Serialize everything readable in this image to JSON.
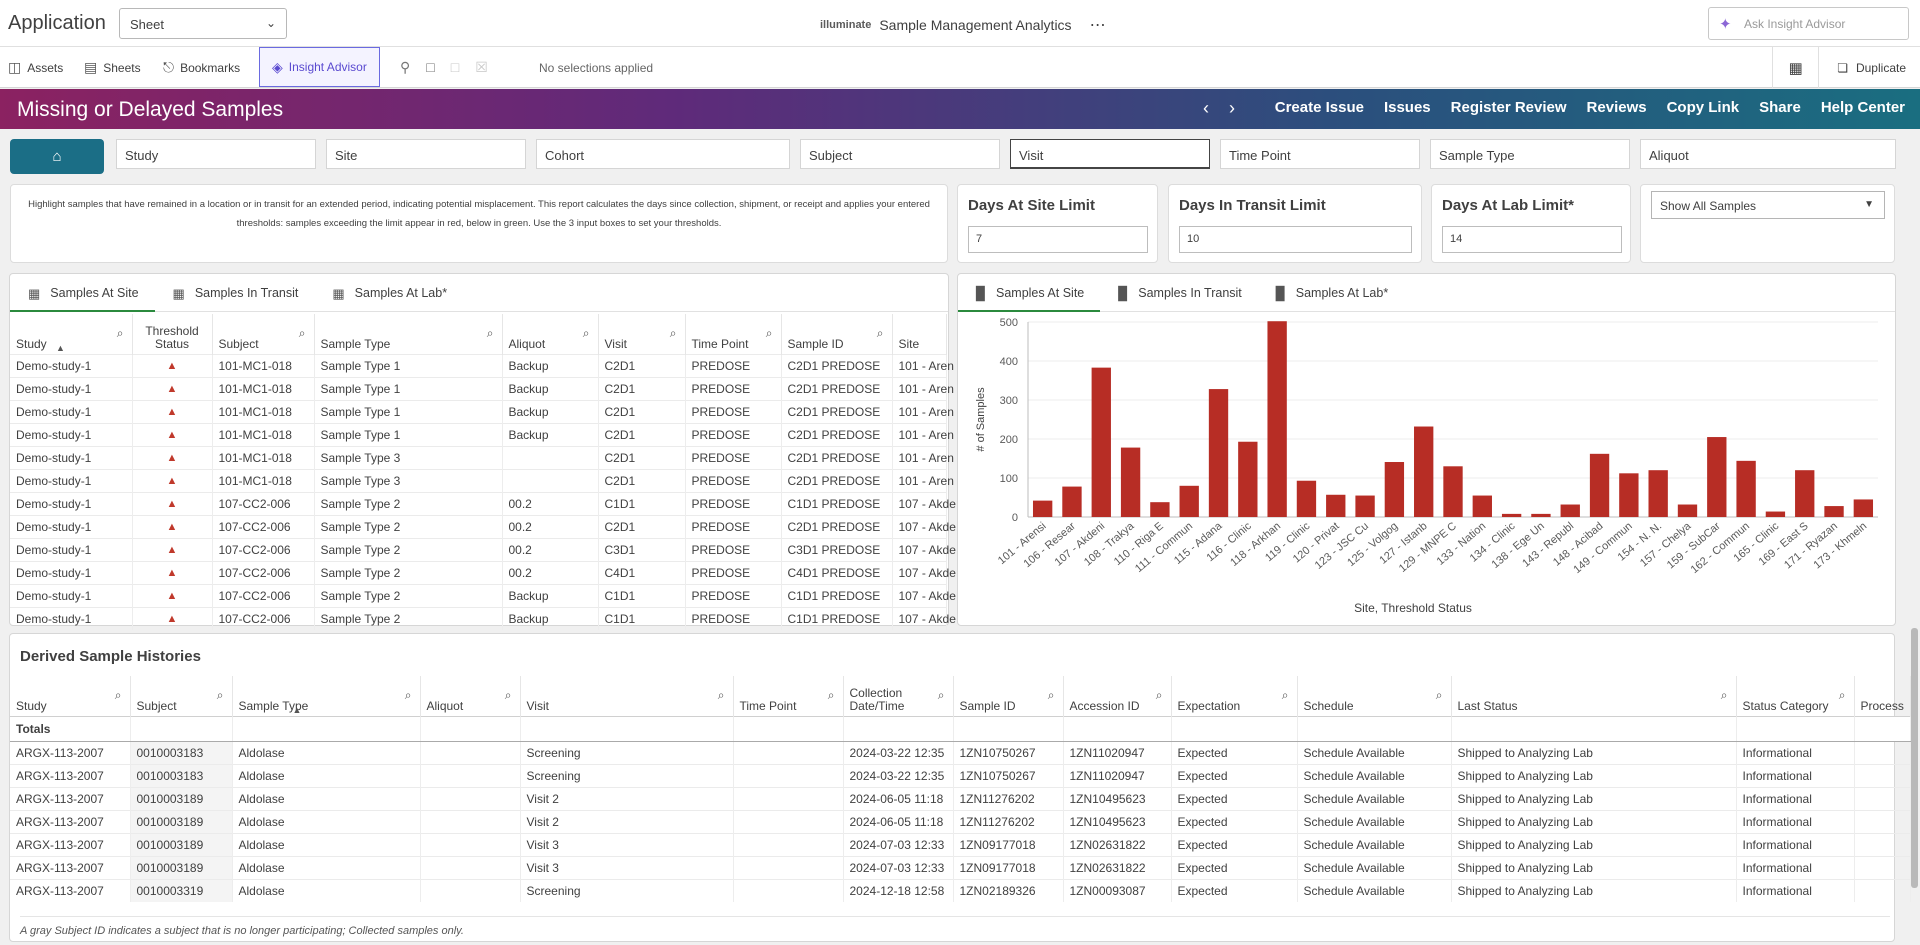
{
  "app": {
    "title": "Application",
    "sheet_select": "Sheet",
    "brand_logo": "illuminate",
    "brand_name": "Sample Management Analytics",
    "ask_placeholder": "Ask Insight Advisor"
  },
  "toolbar": {
    "assets": "Assets",
    "sheets": "Sheets",
    "bookmarks": "Bookmarks",
    "insight_advisor": "Insight Advisor",
    "no_selections": "No selections applied",
    "duplicate": "Duplicate"
  },
  "banner": {
    "title": "Missing or Delayed Samples",
    "links": [
      "Create Issue",
      "Issues",
      "Register Review",
      "Reviews",
      "Copy Link",
      "Share",
      "Help Center"
    ]
  },
  "filters": [
    "Study",
    "Site",
    "Cohort",
    "Subject",
    "Visit",
    "Time Point",
    "Sample Type",
    "Aliquot"
  ],
  "info_text": "Highlight samples that have remained in a location or in transit for an extended period, indicating potential misplacement. This report calculates the days since collection, shipment, or receipt and applies your entered thresholds: samples exceeding the limit appear in red, below in green. Use the 3 input boxes to set your thresholds.",
  "limits": [
    {
      "title": "Days At Site Limit",
      "value": "7"
    },
    {
      "title": "Days In Transit Limit",
      "value": "10"
    },
    {
      "title": "Days At Lab Limit*",
      "value": "14"
    }
  ],
  "show_all": "Show All Samples",
  "table_tabs": [
    "Samples At Site",
    "Samples In Transit",
    "Samples At Lab*"
  ],
  "site_table": {
    "columns": [
      "Study",
      "Threshold Status",
      "Subject",
      "Sample Type",
      "Aliquot",
      "Visit",
      "Time Point",
      "Sample ID",
      "Site"
    ],
    "rows": [
      [
        "Demo-study-1",
        "▲",
        "101-MC1-018",
        "Sample Type 1",
        "Backup",
        "C2D1",
        "PREDOSE",
        "C2D1 PREDOSE",
        "101 - Aren"
      ],
      [
        "Demo-study-1",
        "▲",
        "101-MC1-018",
        "Sample Type 1",
        "Backup",
        "C2D1",
        "PREDOSE",
        "C2D1 PREDOSE",
        "101 - Aren"
      ],
      [
        "Demo-study-1",
        "▲",
        "101-MC1-018",
        "Sample Type 1",
        "Backup",
        "C2D1",
        "PREDOSE",
        "C2D1 PREDOSE",
        "101 - Aren"
      ],
      [
        "Demo-study-1",
        "▲",
        "101-MC1-018",
        "Sample Type 1",
        "Backup",
        "C2D1",
        "PREDOSE",
        "C2D1 PREDOSE",
        "101 - Aren"
      ],
      [
        "Demo-study-1",
        "▲",
        "101-MC1-018",
        "Sample Type 3",
        "",
        "C2D1",
        "PREDOSE",
        "C2D1 PREDOSE",
        "101 - Aren"
      ],
      [
        "Demo-study-1",
        "▲",
        "101-MC1-018",
        "Sample Type 3",
        "",
        "C2D1",
        "PREDOSE",
        "C2D1 PREDOSE",
        "101 - Aren"
      ],
      [
        "Demo-study-1",
        "▲",
        "107-CC2-006",
        "Sample Type 2",
        "00.2",
        "C1D1",
        "PREDOSE",
        "C1D1 PREDOSE",
        "107 - Akde"
      ],
      [
        "Demo-study-1",
        "▲",
        "107-CC2-006",
        "Sample Type 2",
        "00.2",
        "C2D1",
        "PREDOSE",
        "C2D1 PREDOSE",
        "107 - Akde"
      ],
      [
        "Demo-study-1",
        "▲",
        "107-CC2-006",
        "Sample Type 2",
        "00.2",
        "C3D1",
        "PREDOSE",
        "C3D1 PREDOSE",
        "107 - Akde"
      ],
      [
        "Demo-study-1",
        "▲",
        "107-CC2-006",
        "Sample Type 2",
        "00.2",
        "C4D1",
        "PREDOSE",
        "C4D1 PREDOSE",
        "107 - Akde"
      ],
      [
        "Demo-study-1",
        "▲",
        "107-CC2-006",
        "Sample Type 2",
        "Backup",
        "C1D1",
        "PREDOSE",
        "C1D1 PREDOSE",
        "107 - Akde"
      ],
      [
        "Demo-study-1",
        "▲",
        "107-CC2-006",
        "Sample Type 2",
        "Backup",
        "C1D1",
        "PREDOSE",
        "C1D1 PREDOSE",
        "107 - Akde"
      ]
    ]
  },
  "chart_tabs": [
    "Samples At Site",
    "Samples In Transit",
    "Samples At Lab*"
  ],
  "chart_data": {
    "type": "bar",
    "xlabel": "Site, Threshold Status",
    "ylabel": "# of Samples",
    "ylim": [
      0,
      500
    ],
    "yticks": [
      0,
      100,
      200,
      300,
      400,
      500
    ],
    "bar_color": "#b72d25",
    "categories": [
      "101 - Arensi",
      "106 - Resear",
      "107 - Akdeni",
      "108 - Trakya",
      "110 - Riga E",
      "111 - Commun",
      "115 - Adana",
      "116 - Clinic",
      "118 - Arkhan",
      "119 - Clinic",
      "120 - Privat",
      "123 - JSC Cu",
      "125 - Volgog",
      "127 - Istanb",
      "129 - MNPE C",
      "133 - Nation",
      "134 - Clinic",
      "138 - Ege Un",
      "143 - Republ",
      "148 - Acibad",
      "149 - Commun",
      "154 - N. N.",
      "157 - Chelya",
      "159 - SubCar",
      "162 - Commun",
      "165 - Clinic",
      "169 - East S",
      "171 - Ryazan",
      "173 - Khmeln"
    ],
    "values": [
      42,
      78,
      383,
      178,
      38,
      80,
      328,
      193,
      502,
      93,
      57,
      55,
      141,
      232,
      130,
      55,
      8,
      8,
      32,
      162,
      112,
      120,
      32,
      205,
      144,
      14,
      120,
      28,
      45
    ]
  },
  "history": {
    "title": "Derived Sample Histories",
    "columns": [
      "Study",
      "Subject",
      "Sample Type",
      "Aliquot",
      "Visit",
      "Time Point",
      "Collection Date/Time",
      "Sample ID",
      "Accession ID",
      "Expectation",
      "Schedule",
      "Last Status",
      "Status Category",
      "Process"
    ],
    "totals_label": "Totals",
    "rows": [
      [
        "ARGX-113-2007",
        "0010003183",
        "Aldolase",
        "",
        "Screening",
        "",
        "2024-03-22 12:35",
        "1ZN10750267",
        "1ZN11020947",
        "Expected",
        "Schedule Available",
        "Shipped to Analyzing Lab",
        "Informational",
        ""
      ],
      [
        "ARGX-113-2007",
        "0010003183",
        "Aldolase",
        "",
        "Screening",
        "",
        "2024-03-22 12:35",
        "1ZN10750267",
        "1ZN11020947",
        "Expected",
        "Schedule Available",
        "Shipped to Analyzing Lab",
        "Informational",
        ""
      ],
      [
        "ARGX-113-2007",
        "0010003189",
        "Aldolase",
        "",
        "Visit 2",
        "",
        "2024-06-05 11:18",
        "1ZN11276202",
        "1ZN10495623",
        "Expected",
        "Schedule Available",
        "Shipped to Analyzing Lab",
        "Informational",
        ""
      ],
      [
        "ARGX-113-2007",
        "0010003189",
        "Aldolase",
        "",
        "Visit 2",
        "",
        "2024-06-05 11:18",
        "1ZN11276202",
        "1ZN10495623",
        "Expected",
        "Schedule Available",
        "Shipped to Analyzing Lab",
        "Informational",
        ""
      ],
      [
        "ARGX-113-2007",
        "0010003189",
        "Aldolase",
        "",
        "Visit 3",
        "",
        "2024-07-03 12:33",
        "1ZN09177018",
        "1ZN02631822",
        "Expected",
        "Schedule Available",
        "Shipped to Analyzing Lab",
        "Informational",
        ""
      ],
      [
        "ARGX-113-2007",
        "0010003189",
        "Aldolase",
        "",
        "Visit 3",
        "",
        "2024-07-03 12:33",
        "1ZN09177018",
        "1ZN02631822",
        "Expected",
        "Schedule Available",
        "Shipped to Analyzing Lab",
        "Informational",
        ""
      ],
      [
        "ARGX-113-2007",
        "0010003319",
        "Aldolase",
        "",
        "Screening",
        "",
        "2024-12-18 12:58",
        "1ZN02189326",
        "1ZN00093087",
        "Expected",
        "Schedule Available",
        "Shipped to Analyzing Lab",
        "Informational",
        ""
      ]
    ],
    "footnote": "A gray Subject ID indicates a subject that is no longer participating; Collected samples only."
  }
}
